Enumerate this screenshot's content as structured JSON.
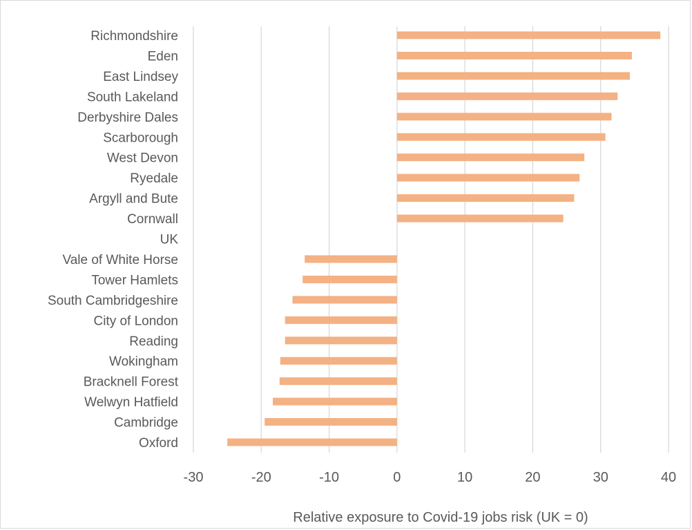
{
  "chart_data": {
    "type": "bar",
    "orientation": "horizontal",
    "categories": [
      "Richmondshire",
      "Eden",
      "East Lindsey",
      "South Lakeland",
      "Derbyshire Dales",
      "Scarborough",
      "West Devon",
      "Ryedale",
      "Argyll and Bute",
      "Cornwall",
      "UK",
      "Vale of White Horse",
      "Tower Hamlets",
      "South Cambridgeshire",
      "City of London",
      "Reading",
      "Wokingham",
      "Bracknell Forest",
      "Welwyn Hatfield",
      "Cambridge",
      "Oxford"
    ],
    "values": [
      38.8,
      34.6,
      34.3,
      32.5,
      31.6,
      30.7,
      27.6,
      26.9,
      26.1,
      24.5,
      0,
      -13.6,
      -13.9,
      -15.4,
      -16.5,
      -16.5,
      -17.2,
      -17.3,
      -18.3,
      -19.5,
      -25.0
    ],
    "xlabel": "Relative exposure to Covid-19 jobs risk (UK = 0)",
    "ylabel": "",
    "title": "",
    "xlim": [
      -30,
      40
    ],
    "xticks": [
      -30,
      -20,
      -10,
      0,
      10,
      20,
      30,
      40
    ],
    "grid": "vertical",
    "bar_color": "#f4b183",
    "grid_color": "#d9d9d9",
    "text_color": "#595959"
  }
}
